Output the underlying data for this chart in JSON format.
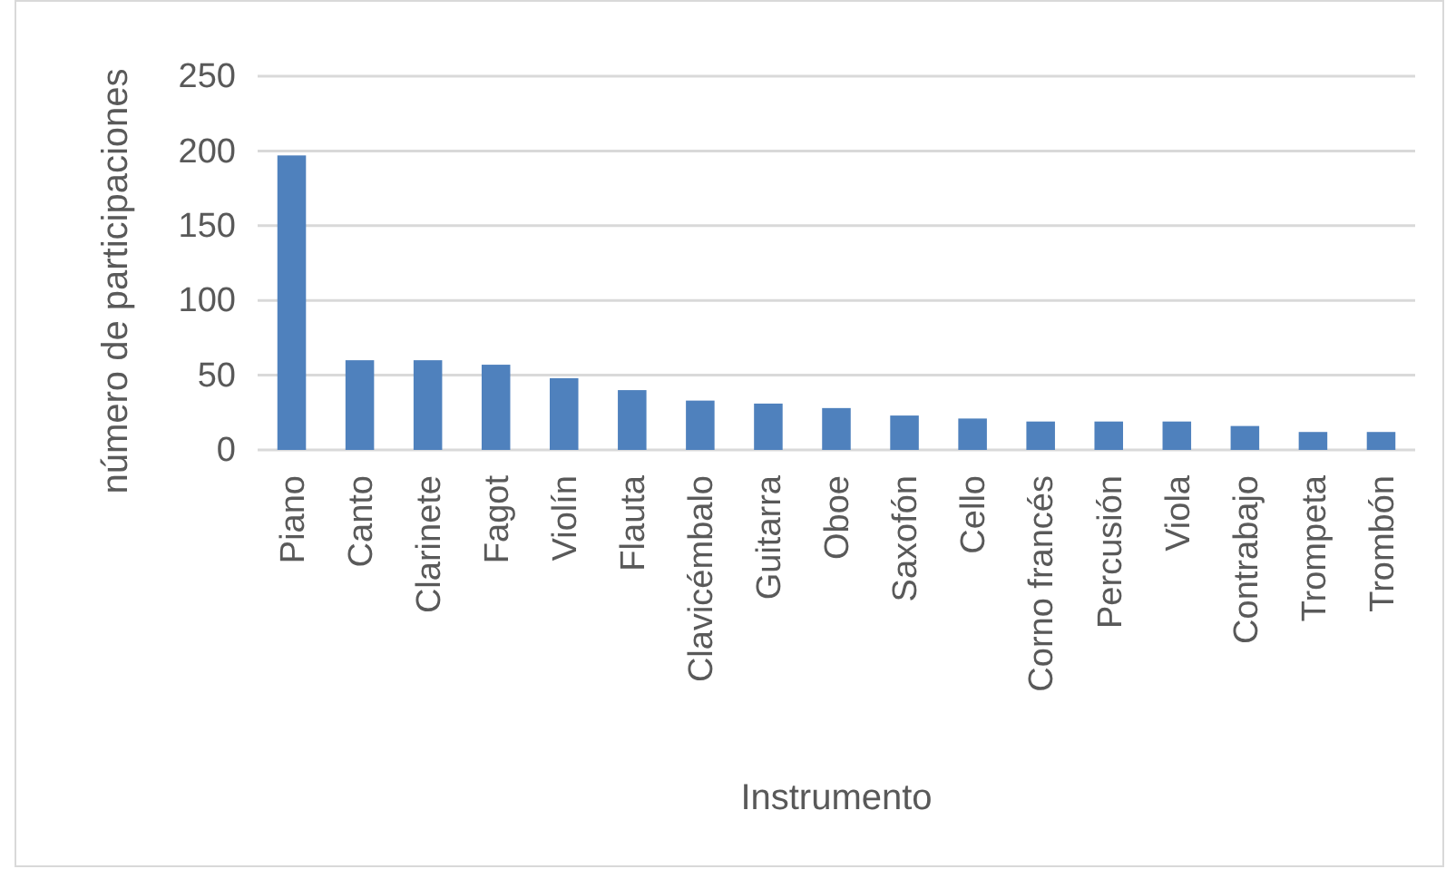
{
  "chart_data": {
    "type": "bar",
    "xlabel": "Instrumento",
    "ylabel": "número de participaciones",
    "categories": [
      "Piano",
      "Canto",
      "Clarinete",
      "Fagot",
      "Violín",
      "Flauta",
      "Clavicémbalo",
      "Guitarra",
      "Oboe",
      "Saxofón",
      "Cello",
      "Corno francés",
      "Percusión",
      "Viola",
      "Contrabajo",
      "Trompeta",
      "Trombón"
    ],
    "values": [
      197,
      60,
      60,
      57,
      48,
      40,
      33,
      31,
      28,
      23,
      21,
      19,
      19,
      19,
      16,
      12,
      12
    ],
    "color": "#4f81bd",
    "ylim": [
      0,
      250
    ],
    "yticks": [
      0,
      50,
      100,
      150,
      200,
      250
    ],
    "grid": "y"
  }
}
